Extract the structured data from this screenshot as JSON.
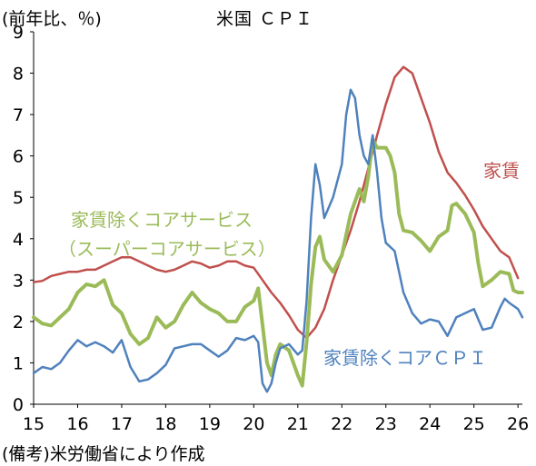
{
  "chart_data": {
    "type": "line",
    "title": "米国 ＣＰＩ",
    "ylabel": "(前年比、％)",
    "xlabel": "",
    "source": "(備考)米労働省により作成",
    "xlim": [
      15.0,
      26.1
    ],
    "ylim": [
      0,
      9
    ],
    "yticks": [
      "0",
      "1",
      "2",
      "3",
      "4",
      "5",
      "6",
      "7",
      "8",
      "9"
    ],
    "xticks": [
      "15",
      "16",
      "17",
      "18",
      "19",
      "20",
      "21",
      "22",
      "23",
      "24",
      "25",
      "26"
    ],
    "grid": false,
    "legend": "inline labels",
    "series": [
      {
        "name": "家賃",
        "label": "家賃",
        "color": "#c0504d",
        "width": 2.5,
        "points": [
          [
            15.0,
            2.95
          ],
          [
            15.2,
            2.98
          ],
          [
            15.4,
            3.1
          ],
          [
            15.6,
            3.15
          ],
          [
            15.8,
            3.2
          ],
          [
            16.0,
            3.2
          ],
          [
            16.2,
            3.25
          ],
          [
            16.4,
            3.25
          ],
          [
            16.6,
            3.35
          ],
          [
            16.8,
            3.45
          ],
          [
            17.0,
            3.55
          ],
          [
            17.2,
            3.55
          ],
          [
            17.4,
            3.45
          ],
          [
            17.6,
            3.35
          ],
          [
            17.8,
            3.25
          ],
          [
            18.0,
            3.2
          ],
          [
            18.2,
            3.25
          ],
          [
            18.4,
            3.35
          ],
          [
            18.6,
            3.45
          ],
          [
            18.8,
            3.4
          ],
          [
            19.0,
            3.3
          ],
          [
            19.2,
            3.35
          ],
          [
            19.4,
            3.45
          ],
          [
            19.6,
            3.45
          ],
          [
            19.8,
            3.35
          ],
          [
            20.0,
            3.3
          ],
          [
            20.2,
            3.0
          ],
          [
            20.4,
            2.7
          ],
          [
            20.6,
            2.45
          ],
          [
            20.8,
            2.15
          ],
          [
            21.0,
            1.8
          ],
          [
            21.2,
            1.6
          ],
          [
            21.4,
            1.85
          ],
          [
            21.6,
            2.3
          ],
          [
            21.8,
            3.0
          ],
          [
            22.0,
            3.6
          ],
          [
            22.2,
            4.2
          ],
          [
            22.4,
            4.9
          ],
          [
            22.6,
            5.7
          ],
          [
            22.8,
            6.5
          ],
          [
            23.0,
            7.25
          ],
          [
            23.2,
            7.9
          ],
          [
            23.4,
            8.15
          ],
          [
            23.6,
            8.0
          ],
          [
            23.8,
            7.4
          ],
          [
            24.0,
            6.8
          ],
          [
            24.2,
            6.1
          ],
          [
            24.4,
            5.6
          ],
          [
            24.6,
            5.35
          ],
          [
            24.8,
            5.05
          ],
          [
            25.0,
            4.7
          ],
          [
            25.2,
            4.3
          ],
          [
            25.4,
            4.0
          ],
          [
            25.6,
            3.7
          ],
          [
            25.8,
            3.55
          ],
          [
            25.9,
            3.3
          ],
          [
            26.0,
            3.05
          ]
        ]
      },
      {
        "name": "家賃除くコアサービス(スーパーコアサービス)",
        "label": "家賃除くコアサービス",
        "label2": "（スーパーコアサービス）",
        "color": "#9bbb59",
        "width": 4,
        "points": [
          [
            15.0,
            2.1
          ],
          [
            15.2,
            1.95
          ],
          [
            15.4,
            1.9
          ],
          [
            15.6,
            2.1
          ],
          [
            15.8,
            2.3
          ],
          [
            16.0,
            2.7
          ],
          [
            16.2,
            2.9
          ],
          [
            16.4,
            2.85
          ],
          [
            16.6,
            3.0
          ],
          [
            16.8,
            2.4
          ],
          [
            17.0,
            2.2
          ],
          [
            17.2,
            1.7
          ],
          [
            17.4,
            1.45
          ],
          [
            17.6,
            1.6
          ],
          [
            17.8,
            2.1
          ],
          [
            18.0,
            1.85
          ],
          [
            18.2,
            2.0
          ],
          [
            18.4,
            2.4
          ],
          [
            18.6,
            2.7
          ],
          [
            18.8,
            2.45
          ],
          [
            19.0,
            2.3
          ],
          [
            19.2,
            2.2
          ],
          [
            19.4,
            2.0
          ],
          [
            19.6,
            2.0
          ],
          [
            19.8,
            2.35
          ],
          [
            20.0,
            2.5
          ],
          [
            20.1,
            2.8
          ],
          [
            20.3,
            1.0
          ],
          [
            20.4,
            0.7
          ],
          [
            20.5,
            1.2
          ],
          [
            20.6,
            1.45
          ],
          [
            20.8,
            1.3
          ],
          [
            21.0,
            0.7
          ],
          [
            21.1,
            0.45
          ],
          [
            21.2,
            1.5
          ],
          [
            21.3,
            2.9
          ],
          [
            21.4,
            3.8
          ],
          [
            21.5,
            4.05
          ],
          [
            21.6,
            3.5
          ],
          [
            21.8,
            3.2
          ],
          [
            22.0,
            3.6
          ],
          [
            22.2,
            4.6
          ],
          [
            22.4,
            5.2
          ],
          [
            22.5,
            4.9
          ],
          [
            22.6,
            5.5
          ],
          [
            22.7,
            6.4
          ],
          [
            22.8,
            6.2
          ],
          [
            23.0,
            6.2
          ],
          [
            23.1,
            6.0
          ],
          [
            23.2,
            5.6
          ],
          [
            23.3,
            4.6
          ],
          [
            23.4,
            4.2
          ],
          [
            23.6,
            4.15
          ],
          [
            23.8,
            3.95
          ],
          [
            24.0,
            3.7
          ],
          [
            24.2,
            4.05
          ],
          [
            24.4,
            4.2
          ],
          [
            24.5,
            4.8
          ],
          [
            24.6,
            4.85
          ],
          [
            24.8,
            4.6
          ],
          [
            25.0,
            4.15
          ],
          [
            25.1,
            3.4
          ],
          [
            25.2,
            2.85
          ],
          [
            25.4,
            3.0
          ],
          [
            25.6,
            3.2
          ],
          [
            25.8,
            3.15
          ],
          [
            25.9,
            2.75
          ],
          [
            26.0,
            2.7
          ],
          [
            26.1,
            2.7
          ]
        ]
      },
      {
        "name": "家賃除くコアＣＰＩ",
        "label": "家賃除くコアＣＰＩ",
        "color": "#4f81bd",
        "width": 2.5,
        "points": [
          [
            15.0,
            0.75
          ],
          [
            15.2,
            0.9
          ],
          [
            15.4,
            0.85
          ],
          [
            15.6,
            1.0
          ],
          [
            15.8,
            1.3
          ],
          [
            16.0,
            1.55
          ],
          [
            16.2,
            1.4
          ],
          [
            16.4,
            1.5
          ],
          [
            16.6,
            1.4
          ],
          [
            16.8,
            1.25
          ],
          [
            17.0,
            1.55
          ],
          [
            17.2,
            0.9
          ],
          [
            17.4,
            0.55
          ],
          [
            17.6,
            0.6
          ],
          [
            17.8,
            0.75
          ],
          [
            18.0,
            0.95
          ],
          [
            18.2,
            1.35
          ],
          [
            18.4,
            1.4
          ],
          [
            18.6,
            1.45
          ],
          [
            18.8,
            1.45
          ],
          [
            19.0,
            1.3
          ],
          [
            19.2,
            1.15
          ],
          [
            19.4,
            1.3
          ],
          [
            19.6,
            1.6
          ],
          [
            19.8,
            1.55
          ],
          [
            20.0,
            1.65
          ],
          [
            20.1,
            1.5
          ],
          [
            20.2,
            0.5
          ],
          [
            20.3,
            0.3
          ],
          [
            20.4,
            0.5
          ],
          [
            20.5,
            1.0
          ],
          [
            20.6,
            1.35
          ],
          [
            20.8,
            1.45
          ],
          [
            21.0,
            1.2
          ],
          [
            21.1,
            1.3
          ],
          [
            21.2,
            2.5
          ],
          [
            21.3,
            4.5
          ],
          [
            21.4,
            5.8
          ],
          [
            21.5,
            5.3
          ],
          [
            21.6,
            4.5
          ],
          [
            21.8,
            5.0
          ],
          [
            22.0,
            5.8
          ],
          [
            22.1,
            7.0
          ],
          [
            22.2,
            7.6
          ],
          [
            22.3,
            7.4
          ],
          [
            22.4,
            6.5
          ],
          [
            22.5,
            6.0
          ],
          [
            22.6,
            5.8
          ],
          [
            22.7,
            6.5
          ],
          [
            22.8,
            5.6
          ],
          [
            22.9,
            4.5
          ],
          [
            23.0,
            3.9
          ],
          [
            23.2,
            3.7
          ],
          [
            23.4,
            2.7
          ],
          [
            23.6,
            2.2
          ],
          [
            23.8,
            1.95
          ],
          [
            24.0,
            2.05
          ],
          [
            24.2,
            2.0
          ],
          [
            24.4,
            1.65
          ],
          [
            24.6,
            2.1
          ],
          [
            24.8,
            2.2
          ],
          [
            25.0,
            2.3
          ],
          [
            25.1,
            2.05
          ],
          [
            25.2,
            1.8
          ],
          [
            25.4,
            1.85
          ],
          [
            25.6,
            2.35
          ],
          [
            25.7,
            2.55
          ],
          [
            25.8,
            2.45
          ],
          [
            26.0,
            2.3
          ],
          [
            26.1,
            2.1
          ]
        ]
      }
    ]
  }
}
